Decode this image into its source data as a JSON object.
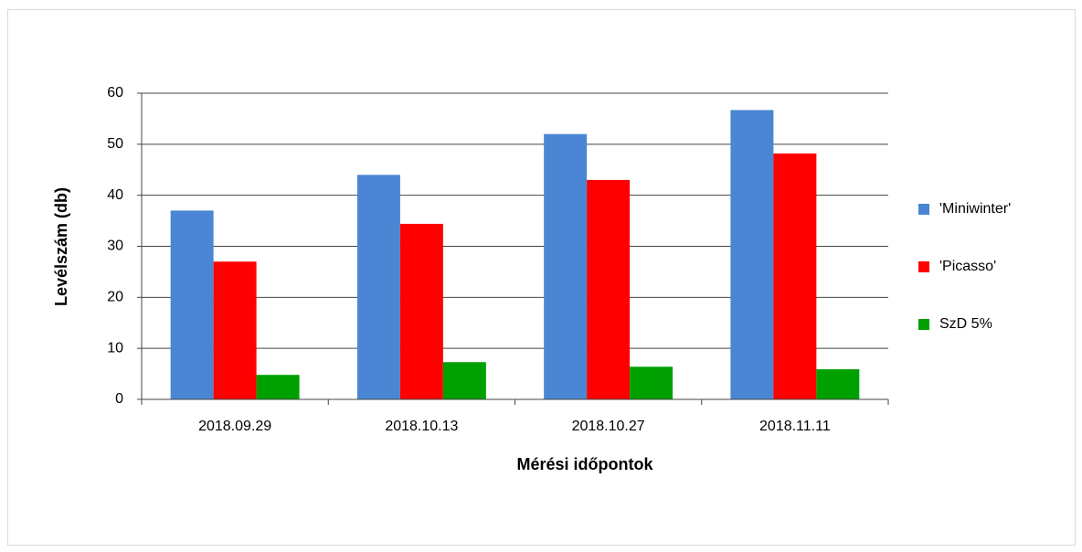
{
  "chart_data": {
    "type": "bar",
    "x_label": "Mérési időpontok",
    "y_label": "Levélszám (db)",
    "categories": [
      "2018.09.29",
      "2018.10.13",
      "2018.10.27",
      "2018.11.11"
    ],
    "series": [
      {
        "name": "'Miniwinter'",
        "color": "#4a86d4",
        "values": [
          37,
          44,
          52,
          56.7
        ]
      },
      {
        "name": "'Picasso'",
        "color": "#ff0000",
        "values": [
          27,
          34.4,
          43,
          48.2
        ]
      },
      {
        "name": "SzD 5%",
        "color": "#00a000",
        "values": [
          4.8,
          7.3,
          6.4,
          5.9
        ]
      }
    ],
    "ylim": [
      0,
      60
    ],
    "yticks": [
      0,
      10,
      20,
      30,
      40,
      50,
      60
    ],
    "grid": true,
    "legend": "right"
  }
}
